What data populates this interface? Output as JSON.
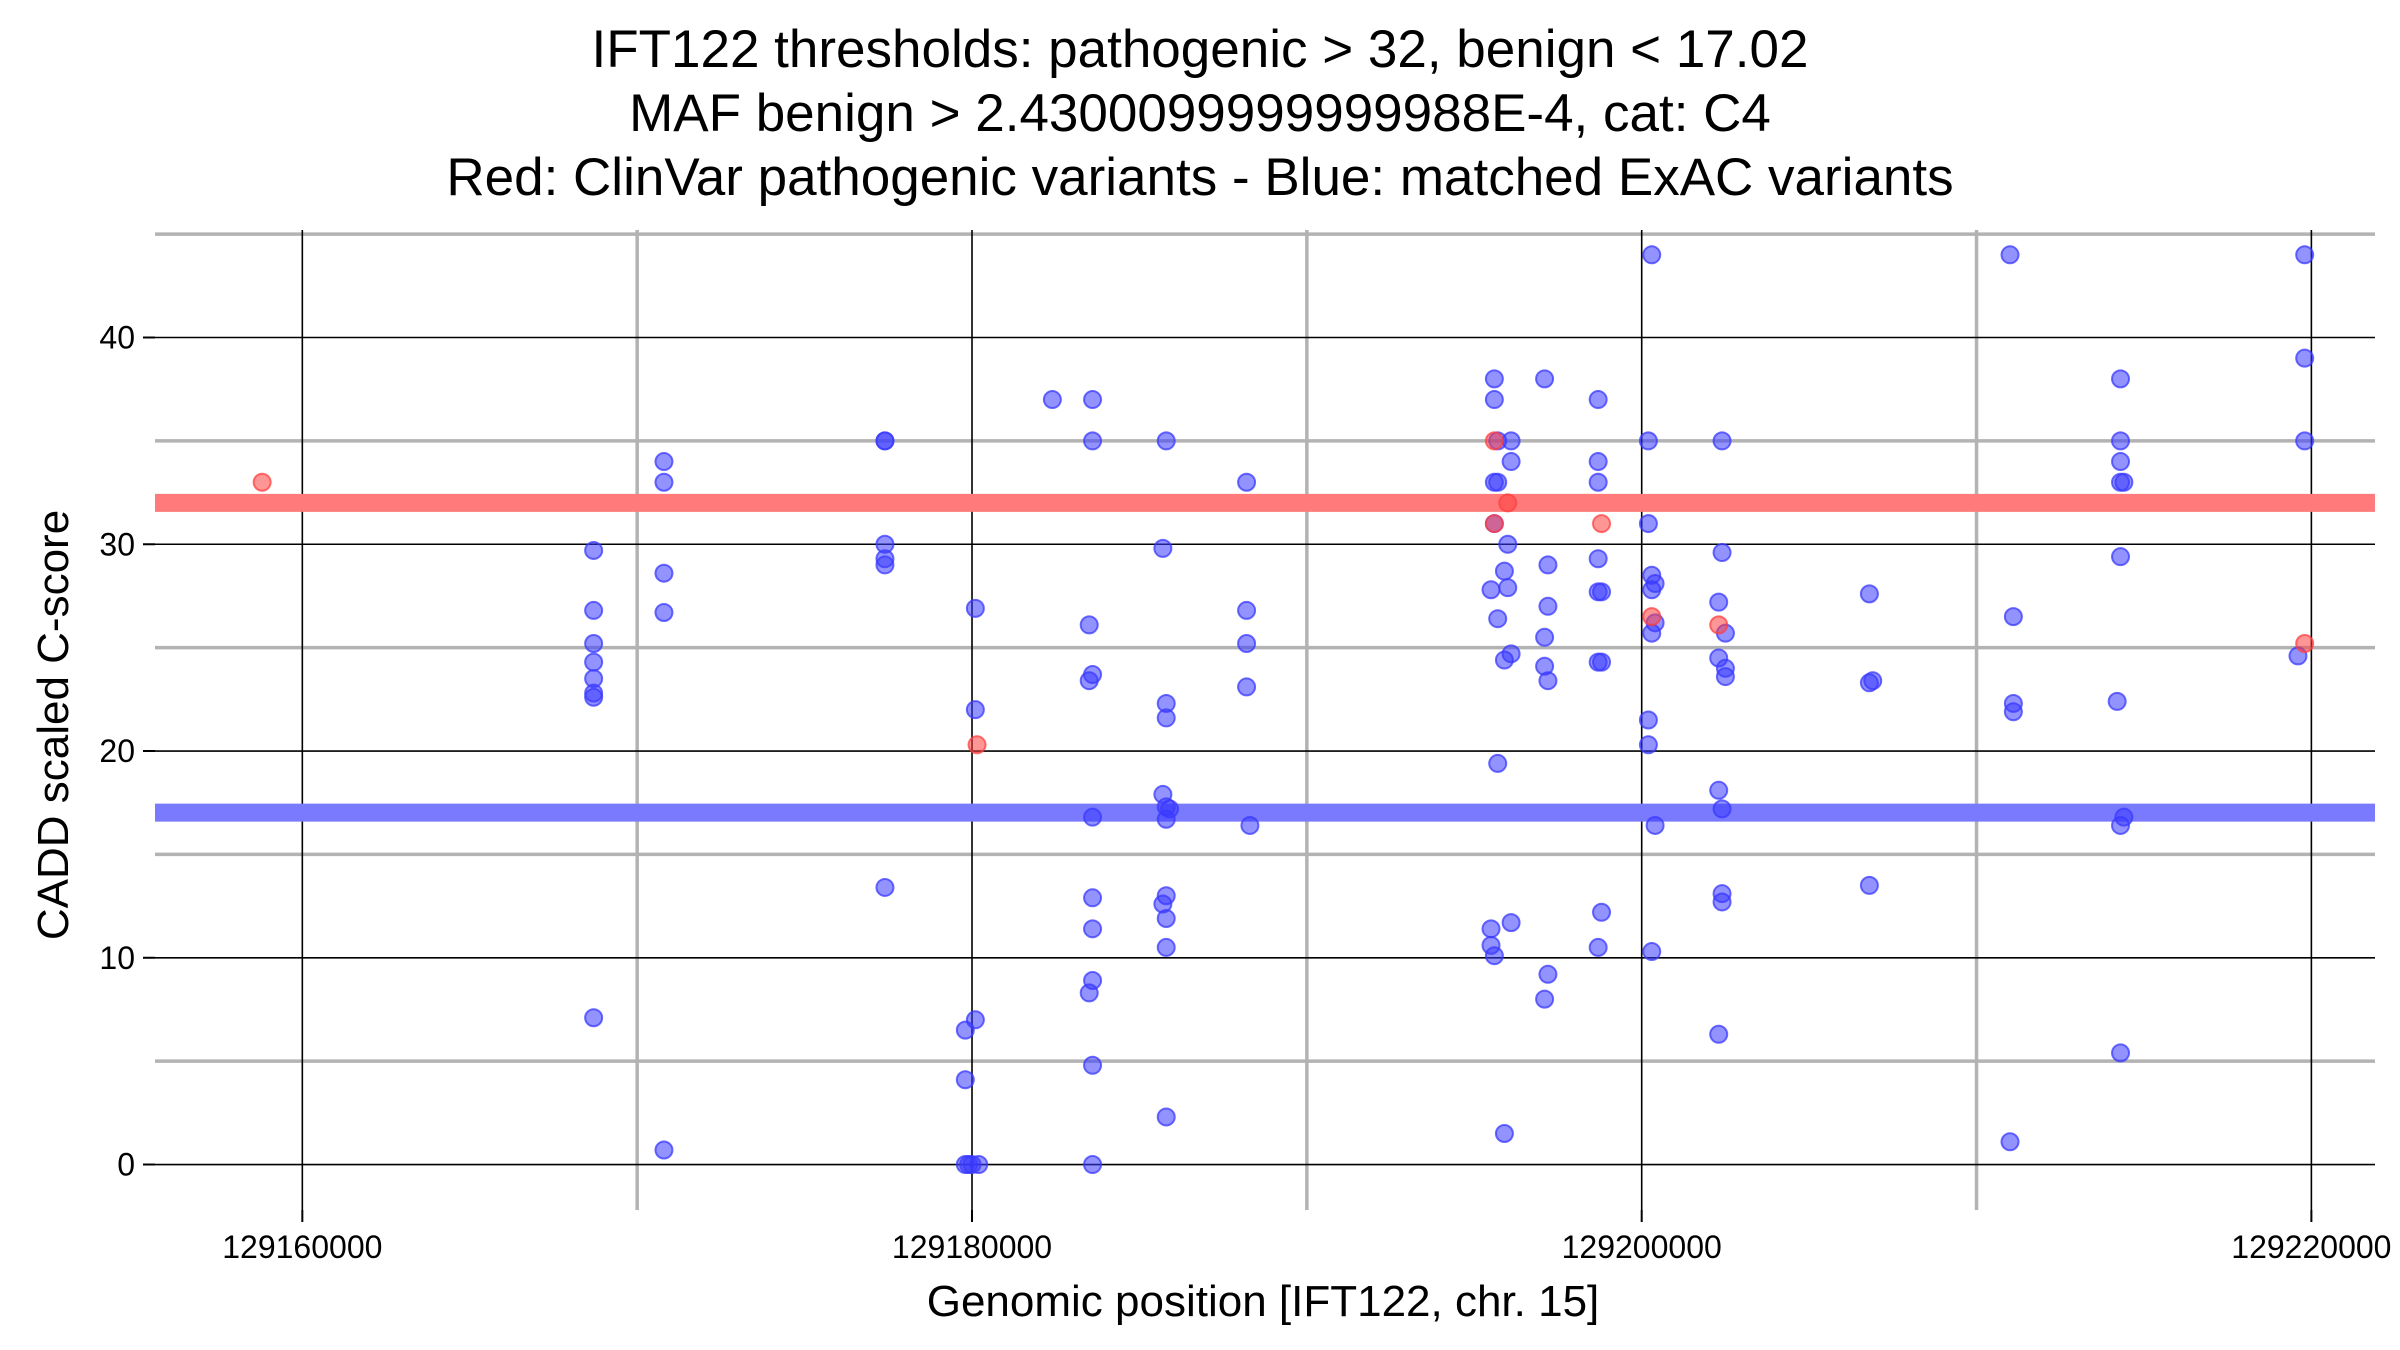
{
  "chart_data": {
    "type": "scatter",
    "title_lines": [
      "IFT122 thresholds: pathogenic > 32, benign < 17.02",
      "MAF benign > 2.4300099999999988E-4, cat: C4",
      "Red: ClinVar pathogenic variants - Blue: matched ExAC variants"
    ],
    "xlabel": "Genomic position [IFT122, chr. 15]",
    "ylabel": "CADD scaled C-score",
    "xlim": [
      129155600,
      129221900
    ],
    "ylim": [
      -2.2,
      45.2
    ],
    "x_ticks": [
      129160000,
      129180000,
      129200000,
      129220000
    ],
    "x_minor_grid": [
      129170000,
      129190000,
      129210000
    ],
    "y_ticks": [
      0,
      10,
      20,
      30,
      40
    ],
    "y_minor_grid": [
      5,
      15,
      25,
      35,
      45
    ],
    "grid": true,
    "hlines": [
      {
        "y": 32,
        "color": "#ff7a7a"
      },
      {
        "y": 17.02,
        "color": "#7a7aff"
      }
    ],
    "colors": {
      "pathogenic": "#ff4040",
      "benign": "#3a3aff"
    },
    "series": [
      {
        "key": "pathogenic",
        "points": [
          [
            129158800,
            33.0
          ],
          [
            129180150,
            20.3
          ],
          [
            129195600,
            35.0
          ],
          [
            129195600,
            31.0
          ],
          [
            129196000,
            32.0
          ],
          [
            129198800,
            31.0
          ],
          [
            129200300,
            26.5
          ],
          [
            129202300,
            26.1
          ],
          [
            129219800,
            25.2
          ]
        ]
      },
      {
        "key": "benign",
        "points": [
          [
            129168700,
            29.7
          ],
          [
            129168700,
            26.8
          ],
          [
            129168700,
            25.2
          ],
          [
            129168700,
            24.3
          ],
          [
            129168700,
            23.5
          ],
          [
            129168700,
            22.8
          ],
          [
            129168700,
            22.6
          ],
          [
            129168700,
            7.1
          ],
          [
            129170800,
            34.0
          ],
          [
            129170800,
            33.0
          ],
          [
            129170800,
            28.6
          ],
          [
            129170800,
            26.7
          ],
          [
            129170800,
            0.7
          ],
          [
            129177400,
            35.0
          ],
          [
            129177400,
            35.0
          ],
          [
            129177400,
            30.0
          ],
          [
            129177400,
            29.3
          ],
          [
            129177400,
            29.0
          ],
          [
            129177400,
            13.4
          ],
          [
            129179800,
            6.5
          ],
          [
            129179800,
            4.1
          ],
          [
            129179800,
            0.0
          ],
          [
            129179900,
            0.0
          ],
          [
            129180000,
            0.0
          ],
          [
            129180100,
            26.9
          ],
          [
            129180100,
            22.0
          ],
          [
            129180100,
            7.0
          ],
          [
            129180200,
            0.0
          ],
          [
            129182400,
            37.0
          ],
          [
            129183600,
            37.0
          ],
          [
            129183600,
            35.0
          ],
          [
            129183500,
            26.1
          ],
          [
            129183600,
            23.7
          ],
          [
            129183500,
            23.4
          ],
          [
            129183600,
            16.8
          ],
          [
            129183600,
            12.9
          ],
          [
            129183600,
            11.4
          ],
          [
            129183600,
            8.9
          ],
          [
            129183500,
            8.3
          ],
          [
            129183600,
            4.8
          ],
          [
            129183600,
            0.0
          ],
          [
            129185800,
            35.0
          ],
          [
            129185700,
            29.8
          ],
          [
            129185800,
            22.3
          ],
          [
            129185800,
            21.6
          ],
          [
            129185700,
            17.9
          ],
          [
            129185800,
            17.3
          ],
          [
            129185900,
            17.2
          ],
          [
            129185800,
            16.7
          ],
          [
            129185800,
            13.0
          ],
          [
            129185700,
            12.6
          ],
          [
            129185800,
            11.9
          ],
          [
            129185800,
            10.5
          ],
          [
            129185800,
            2.3
          ],
          [
            129188200,
            33.0
          ],
          [
            129188200,
            26.8
          ],
          [
            129188200,
            25.2
          ],
          [
            129188200,
            23.1
          ],
          [
            129188300,
            16.4
          ],
          [
            129195600,
            38.0
          ],
          [
            129195600,
            37.0
          ],
          [
            129195700,
            35.0
          ],
          [
            129196100,
            35.0
          ],
          [
            129195600,
            33.0
          ],
          [
            129195700,
            33.0
          ],
          [
            129196100,
            34.0
          ],
          [
            129195600,
            31.0
          ],
          [
            129196000,
            30.0
          ],
          [
            129195900,
            28.7
          ],
          [
            129196000,
            27.9
          ],
          [
            129195500,
            27.8
          ],
          [
            129195700,
            26.4
          ],
          [
            129196100,
            24.7
          ],
          [
            129195900,
            24.4
          ],
          [
            129195700,
            19.4
          ],
          [
            129195500,
            11.4
          ],
          [
            129196100,
            11.7
          ],
          [
            129195500,
            10.6
          ],
          [
            129195600,
            10.1
          ],
          [
            129195900,
            1.5
          ],
          [
            129197100,
            38.0
          ],
          [
            129197200,
            29.0
          ],
          [
            129197200,
            27.0
          ],
          [
            129197100,
            25.5
          ],
          [
            129197100,
            24.1
          ],
          [
            129197200,
            23.4
          ],
          [
            129197200,
            9.2
          ],
          [
            129197100,
            8.0
          ],
          [
            129198700,
            37.0
          ],
          [
            129198700,
            34.0
          ],
          [
            129198700,
            33.0
          ],
          [
            129198700,
            29.3
          ],
          [
            129198700,
            27.7
          ],
          [
            129198800,
            27.7
          ],
          [
            129198700,
            24.3
          ],
          [
            129198800,
            24.3
          ],
          [
            129198800,
            12.2
          ],
          [
            129198700,
            10.5
          ],
          [
            129200300,
            44.0
          ],
          [
            129200200,
            35.0
          ],
          [
            129200200,
            31.0
          ],
          [
            129200300,
            28.5
          ],
          [
            129200400,
            28.1
          ],
          [
            129200300,
            27.8
          ],
          [
            129200400,
            26.2
          ],
          [
            129200300,
            25.7
          ],
          [
            129200200,
            21.5
          ],
          [
            129200200,
            20.3
          ],
          [
            129200400,
            16.4
          ],
          [
            129200300,
            10.3
          ],
          [
            129202400,
            35.0
          ],
          [
            129202400,
            29.6
          ],
          [
            129202300,
            27.2
          ],
          [
            129202500,
            25.7
          ],
          [
            129202300,
            24.5
          ],
          [
            129202500,
            24.0
          ],
          [
            129202500,
            23.6
          ],
          [
            129202300,
            18.1
          ],
          [
            129202400,
            17.2
          ],
          [
            129202400,
            13.1
          ],
          [
            129202400,
            12.7
          ],
          [
            129202300,
            6.3
          ],
          [
            129206800,
            27.6
          ],
          [
            129206800,
            23.3
          ],
          [
            129206900,
            23.4
          ],
          [
            129206800,
            13.5
          ],
          [
            129211000,
            44.0
          ],
          [
            129211100,
            26.5
          ],
          [
            129211100,
            22.3
          ],
          [
            129211100,
            21.9
          ],
          [
            129211000,
            1.1
          ],
          [
            129214300,
            38.0
          ],
          [
            129214300,
            35.0
          ],
          [
            129214300,
            34.0
          ],
          [
            129214300,
            33.0
          ],
          [
            129214400,
            33.0
          ],
          [
            129214300,
            29.4
          ],
          [
            129214200,
            22.4
          ],
          [
            129214400,
            16.8
          ],
          [
            129214300,
            16.4
          ],
          [
            129214300,
            5.4
          ],
          [
            129219800,
            44.0
          ],
          [
            129219800,
            39.0
          ],
          [
            129219800,
            35.0
          ],
          [
            129219600,
            24.6
          ]
        ]
      }
    ]
  }
}
